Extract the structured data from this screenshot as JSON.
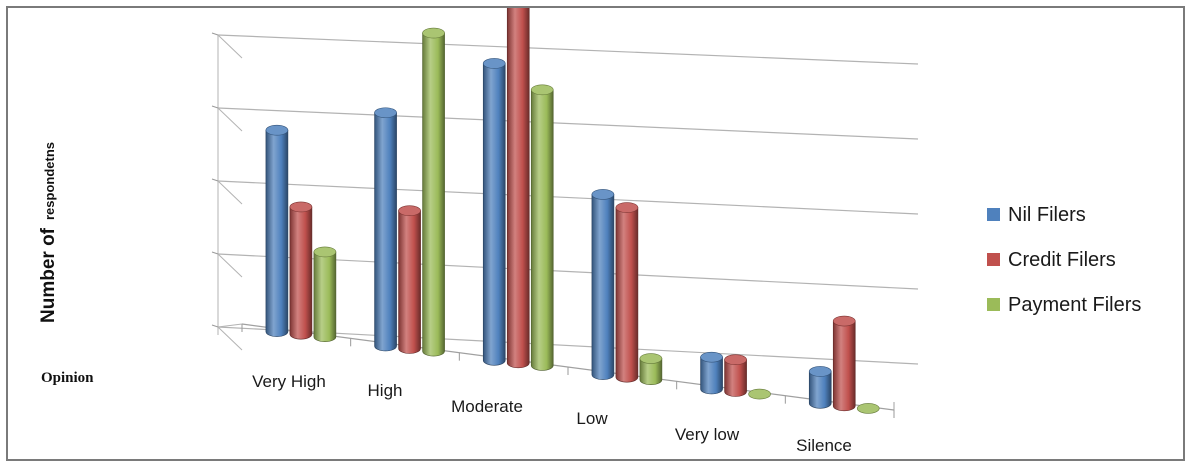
{
  "chart_data": {
    "type": "bar",
    "style": "3d-cylinder",
    "xlabel": "Opinion",
    "ylabel_parts": [
      "Number of",
      "respondetns"
    ],
    "categories": [
      "Very High",
      "High",
      "Moderate",
      "Low",
      "Very low",
      "Silence"
    ],
    "series": [
      {
        "name": "Nil Filers",
        "color": "#4F81BD",
        "values": [
          19,
          22,
          28,
          17,
          3,
          3
        ]
      },
      {
        "name": "Credit Filers",
        "color": "#C0504D",
        "values": [
          12,
          13,
          37,
          16,
          3,
          8
        ]
      },
      {
        "name": "Payment Filers",
        "color": "#9BBB59",
        "values": [
          8,
          30,
          26,
          2,
          0,
          0
        ]
      }
    ],
    "ylim": [
      0,
      40
    ],
    "grid": true,
    "legend_position": "right"
  }
}
